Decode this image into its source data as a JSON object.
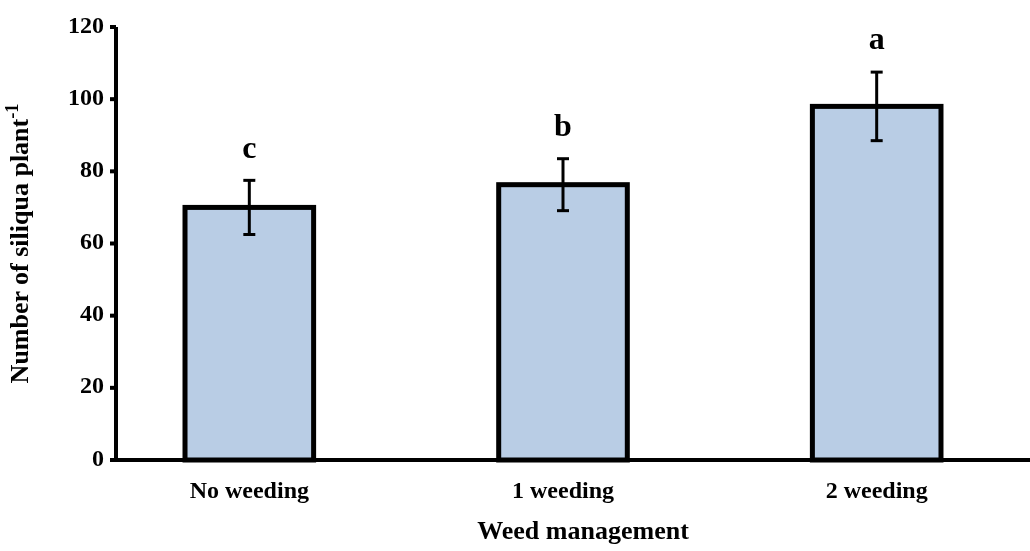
{
  "chart_data": {
    "type": "bar",
    "xlabel": "Weed management",
    "ylabel": "Number of siliqua plant$^{-1}$",
    "categories": [
      "No weeding",
      "1 weeding",
      "2 weeding"
    ],
    "values": [
      70,
      76.3,
      98
    ],
    "errors": [
      7.5,
      7.2,
      9.5
    ],
    "color": "#b9cde5",
    "ylim": [
      0,
      120
    ],
    "yticks": [
      0,
      20,
      40,
      60,
      80,
      100,
      120
    ],
    "annotations": [
      "c",
      "b",
      "a"
    ]
  }
}
